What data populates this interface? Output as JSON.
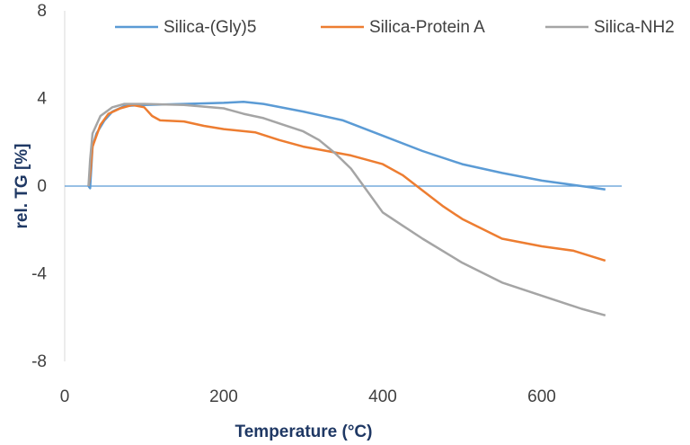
{
  "chart_data": {
    "type": "line",
    "xlabel": "Temperature (°C)",
    "ylabel": "rel. TG [%]",
    "xlim": [
      0,
      700
    ],
    "ylim": [
      -8,
      8
    ],
    "x_ticks": [
      0,
      200,
      400,
      600
    ],
    "y_ticks": [
      8,
      4,
      0,
      -4,
      -8
    ],
    "grid": false,
    "legend_position": "top",
    "series": [
      {
        "name": "Silica-(Gly)5",
        "color": "#5b9bd5",
        "points": [
          [
            30,
            0
          ],
          [
            32,
            -0.1
          ],
          [
            35,
            1.8
          ],
          [
            40,
            2.4
          ],
          [
            50,
            3.0
          ],
          [
            60,
            3.4
          ],
          [
            75,
            3.65
          ],
          [
            100,
            3.7
          ],
          [
            150,
            3.75
          ],
          [
            200,
            3.8
          ],
          [
            225,
            3.85
          ],
          [
            250,
            3.75
          ],
          [
            300,
            3.4
          ],
          [
            350,
            3.0
          ],
          [
            400,
            2.3
          ],
          [
            450,
            1.6
          ],
          [
            500,
            1.0
          ],
          [
            550,
            0.6
          ],
          [
            600,
            0.25
          ],
          [
            650,
            0.0
          ],
          [
            680,
            -0.15
          ]
        ]
      },
      {
        "name": "Silica-Protein A",
        "color": "#ed7d31",
        "points": [
          [
            30,
            0
          ],
          [
            32,
            0.5
          ],
          [
            35,
            1.8
          ],
          [
            45,
            2.8
          ],
          [
            55,
            3.3
          ],
          [
            70,
            3.55
          ],
          [
            85,
            3.7
          ],
          [
            100,
            3.6
          ],
          [
            110,
            3.2
          ],
          [
            120,
            3.0
          ],
          [
            150,
            2.95
          ],
          [
            175,
            2.75
          ],
          [
            200,
            2.6
          ],
          [
            240,
            2.45
          ],
          [
            270,
            2.1
          ],
          [
            300,
            1.8
          ],
          [
            330,
            1.6
          ],
          [
            360,
            1.4
          ],
          [
            400,
            1.0
          ],
          [
            425,
            0.5
          ],
          [
            450,
            -0.2
          ],
          [
            475,
            -0.9
          ],
          [
            500,
            -1.5
          ],
          [
            550,
            -2.4
          ],
          [
            600,
            -2.75
          ],
          [
            640,
            -2.95
          ],
          [
            680,
            -3.4
          ]
        ]
      },
      {
        "name": "Silica-NH2",
        "color": "#a5a5a5",
        "points": [
          [
            30,
            0
          ],
          [
            32,
            1.2
          ],
          [
            35,
            2.4
          ],
          [
            45,
            3.2
          ],
          [
            60,
            3.6
          ],
          [
            75,
            3.75
          ],
          [
            100,
            3.75
          ],
          [
            150,
            3.7
          ],
          [
            200,
            3.55
          ],
          [
            225,
            3.3
          ],
          [
            250,
            3.1
          ],
          [
            275,
            2.8
          ],
          [
            300,
            2.5
          ],
          [
            320,
            2.1
          ],
          [
            340,
            1.5
          ],
          [
            360,
            0.8
          ],
          [
            380,
            -0.2
          ],
          [
            400,
            -1.2
          ],
          [
            425,
            -1.8
          ],
          [
            450,
            -2.4
          ],
          [
            500,
            -3.5
          ],
          [
            550,
            -4.4
          ],
          [
            600,
            -5.0
          ],
          [
            650,
            -5.6
          ],
          [
            680,
            -5.9
          ]
        ]
      }
    ]
  }
}
